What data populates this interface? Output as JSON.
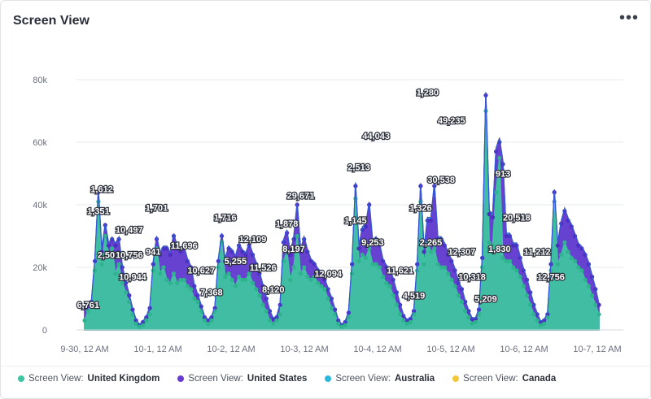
{
  "header": {
    "title": "Screen View",
    "menu_icon": "more-horizontal-icon"
  },
  "colors": {
    "United Kingdom": "#3ec4a0",
    "United States": "#6a3bd0",
    "Australia": "#2bb8da",
    "Canada": "#f2c83a"
  },
  "legend": [
    {
      "prefix": "Screen View:",
      "name": "United Kingdom",
      "color": "#3ec4a0"
    },
    {
      "prefix": "Screen View:",
      "name": "United States",
      "color": "#6a3bd0"
    },
    {
      "prefix": "Screen View:",
      "name": "Australia",
      "color": "#2bb8da"
    },
    {
      "prefix": "Screen View:",
      "name": "Canada",
      "color": "#f2c83a"
    }
  ],
  "chart_data": {
    "type": "area",
    "stacked": true,
    "title": "Screen View",
    "x_tick_labels": [
      "9-30, 12 AM",
      "10-1, 12 AM",
      "10-2, 12 AM",
      "10-3, 12 AM",
      "10-4, 12 AM",
      "10-5, 12 AM",
      "10-6, 12 AM",
      "10-7, 12 AM"
    ],
    "y_tick_labels": [
      "0",
      "20k",
      "40k",
      "60k",
      "80k"
    ],
    "ylim": [
      0,
      80000
    ],
    "x_unit": "hours since 9-30, 12 AM",
    "x": [
      0,
      1,
      2,
      3,
      4,
      5,
      6,
      7,
      8,
      9,
      10,
      11,
      12,
      13,
      14,
      15,
      16,
      17,
      18,
      19,
      20,
      21,
      22,
      23,
      24,
      25,
      26,
      27,
      28,
      29,
      30,
      31,
      32,
      33,
      34,
      35,
      36,
      37,
      38,
      39,
      40,
      41,
      42,
      43,
      44,
      45,
      46,
      47,
      48,
      49,
      50,
      51,
      52,
      53,
      54,
      55,
      56,
      57,
      58,
      59,
      60,
      61,
      62,
      63,
      64,
      65,
      66,
      67,
      68,
      69,
      70,
      71,
      72,
      73,
      74,
      75,
      76,
      77,
      78,
      79,
      80,
      81,
      82,
      83,
      84,
      85,
      86,
      87,
      88,
      89,
      90,
      91,
      92,
      93,
      94,
      95,
      96,
      97,
      98,
      99,
      100,
      101,
      102,
      103,
      104,
      105,
      106,
      107,
      108,
      109,
      110,
      111,
      112,
      113,
      114,
      115,
      116,
      117,
      118,
      119,
      120,
      121,
      122,
      123,
      124,
      125,
      126,
      127,
      128,
      129,
      130,
      131,
      132,
      133,
      134,
      135,
      136,
      137,
      138,
      139,
      140,
      141,
      142,
      143,
      144,
      145,
      146,
      147,
      148,
      149,
      150,
      151,
      152,
      153,
      154,
      155,
      156,
      157,
      158,
      159,
      160,
      161,
      162,
      163,
      164,
      165,
      166,
      167,
      168
    ],
    "series": [
      {
        "name": "United Kingdom",
        "values": [
          3000,
          6000,
          8000,
          19000,
          41000,
          21000,
          30000,
          24000,
          26000,
          18000,
          21000,
          15000,
          12000,
          9000,
          5000,
          2000,
          1000,
          1500,
          3000,
          5000,
          19000,
          26000,
          18000,
          20000,
          16000,
          15000,
          18000,
          15000,
          16000,
          16000,
          14000,
          13000,
          10000,
          9000,
          6000,
          3000,
          2000,
          3000,
          6000,
          20000,
          28000,
          17000,
          18000,
          16000,
          14000,
          17000,
          16000,
          16000,
          18000,
          15000,
          13000,
          11000,
          8000,
          6000,
          3000,
          2000,
          3000,
          5000,
          22000,
          25000,
          16000,
          20000,
          30000,
          18000,
          20000,
          17000,
          16000,
          17000,
          15000,
          14000,
          13000,
          10000,
          7000,
          5000,
          2000,
          1000,
          1500,
          4000,
          18000,
          42000,
          22000,
          24000,
          23000,
          26000,
          21000,
          21000,
          20000,
          17000,
          15000,
          14000,
          11000,
          8000,
          5000,
          3000,
          2000,
          2500,
          5000,
          19000,
          41000,
          21000,
          28000,
          25000,
          26000,
          21000,
          20000,
          20000,
          18000,
          16000,
          14000,
          11000,
          9000,
          6000,
          4000,
          2000,
          2500,
          5000,
          20000,
          70000,
          28000,
          27000,
          44000,
          55000,
          23000,
          22000,
          22000,
          20000,
          19000,
          17000,
          14000,
          11000,
          8000,
          5000,
          3000,
          1500,
          2000,
          4000,
          19000,
          41000,
          21000,
          24000,
          28000,
          25000,
          23000,
          22000,
          20000,
          19000,
          16000,
          14000,
          11000,
          8000,
          5000,
          2000,
          1000,
          1000,
          0,
          0,
          0,
          0,
          0,
          0,
          0,
          0,
          0,
          0,
          0,
          0,
          0,
          0,
          0
        ]
      },
      {
        "name": "United States",
        "values": [
          4000,
          2000,
          1000,
          3000,
          3000,
          4000,
          3500,
          3000,
          3000,
          9000,
          8000,
          5000,
          3000,
          2000,
          1500,
          1000,
          500,
          1000,
          1000,
          2000,
          2000,
          3000,
          6000,
          6000,
          10000,
          9000,
          12000,
          11000,
          9000,
          10000,
          8000,
          7000,
          4000,
          2000,
          1500,
          1000,
          1000,
          1000,
          1000,
          2000,
          2000,
          5000,
          8000,
          9000,
          9000,
          10000,
          9000,
          8000,
          9000,
          9000,
          8000,
          7000,
          6000,
          4000,
          3000,
          1500,
          1000,
          3000,
          6000,
          6000,
          8000,
          9000,
          10000,
          7000,
          9000,
          8000,
          6000,
          4000,
          4000,
          4000,
          3000,
          3000,
          3000,
          1500,
          1000,
          500,
          1000,
          1500,
          3000,
          4000,
          4000,
          8000,
          10000,
          14000,
          7000,
          8000,
          7000,
          5000,
          5000,
          5000,
          5000,
          4000,
          3000,
          1500,
          1000,
          1000,
          1000,
          2000,
          5000,
          4000,
          7000,
          10000,
          20000,
          8000,
          9000,
          7000,
          6000,
          6000,
          5000,
          4000,
          4000,
          3000,
          2000,
          1500,
          1000,
          1500,
          3000,
          5000,
          9000,
          9000,
          13000,
          5000,
          30000,
          8000,
          8000,
          7000,
          8000,
          6000,
          5000,
          5000,
          4000,
          3000,
          2000,
          1000,
          1000,
          1000,
          2000,
          3000,
          6000,
          10000,
          10000,
          10000,
          10000,
          8000,
          7000,
          7000,
          8000,
          7000,
          6000,
          5000,
          3000,
          1500,
          1000,
          1000,
          0,
          0,
          0,
          0,
          0,
          0,
          0,
          0,
          0,
          0,
          0,
          0,
          0,
          0,
          0
        ]
      },
      {
        "name": "Australia",
        "values": [
          300,
          300,
          300,
          500,
          600,
          500,
          500,
          500,
          500,
          500,
          500,
          400,
          400,
          300,
          300,
          200,
          200,
          200,
          200,
          300,
          600,
          700,
          600,
          600,
          600,
          600,
          600,
          600,
          500,
          500,
          500,
          400,
          400,
          300,
          300,
          200,
          200,
          200,
          300,
          500,
          600,
          600,
          600,
          500,
          500,
          500,
          500,
          500,
          500,
          500,
          500,
          400,
          400,
          300,
          200,
          200,
          200,
          300,
          600,
          700,
          600,
          700,
          600,
          600,
          600,
          500,
          500,
          500,
          500,
          400,
          400,
          300,
          300,
          200,
          200,
          200,
          200,
          300,
          500,
          800,
          700,
          700,
          700,
          700,
          600,
          600,
          600,
          500,
          500,
          500,
          400,
          400,
          300,
          300,
          200,
          200,
          200,
          300,
          600,
          700,
          700,
          700,
          700,
          600,
          600,
          600,
          500,
          500,
          500,
          400,
          300,
          300,
          200,
          200,
          200,
          200,
          300,
          700,
          900,
          800,
          900,
          1000,
          700,
          700,
          700,
          600,
          600,
          500,
          500,
          400,
          300,
          300,
          200,
          200,
          200,
          200,
          300,
          700,
          700,
          700,
          700,
          600,
          600,
          600,
          600,
          500,
          500,
          400,
          400,
          300,
          300,
          200,
          200,
          200,
          0,
          0,
          0,
          0,
          0,
          0,
          0,
          0,
          0,
          0,
          0,
          0,
          0,
          0,
          0
        ]
      },
      {
        "name": "Canada",
        "values": [
          100,
          100,
          100,
          200,
          300,
          200,
          200,
          200,
          200,
          200,
          200,
          100,
          100,
          100,
          100,
          100,
          100,
          100,
          100,
          100,
          300,
          300,
          200,
          200,
          200,
          200,
          200,
          200,
          200,
          200,
          200,
          100,
          100,
          100,
          100,
          100,
          100,
          100,
          100,
          200,
          300,
          200,
          200,
          200,
          200,
          200,
          200,
          200,
          200,
          200,
          200,
          100,
          100,
          100,
          100,
          100,
          100,
          100,
          200,
          300,
          200,
          200,
          200,
          200,
          200,
          200,
          200,
          200,
          200,
          100,
          100,
          100,
          100,
          100,
          100,
          100,
          100,
          100,
          200,
          300,
          200,
          300,
          200,
          200,
          200,
          200,
          200,
          200,
          200,
          100,
          100,
          100,
          100,
          100,
          100,
          100,
          100,
          100,
          300,
          200,
          300,
          200,
          300,
          200,
          200,
          200,
          200,
          200,
          200,
          100,
          100,
          100,
          100,
          100,
          100,
          100,
          100,
          300,
          300,
          300,
          300,
          400,
          300,
          200,
          200,
          200,
          200,
          200,
          200,
          100,
          100,
          100,
          100,
          100,
          100,
          100,
          100,
          200,
          300,
          200,
          200,
          200,
          200,
          200,
          200,
          200,
          200,
          200,
          100,
          100,
          100,
          100,
          100,
          100,
          0,
          0,
          0,
          0,
          0,
          0,
          0,
          0,
          0,
          0,
          0,
          0,
          0,
          0,
          0
        ]
      }
    ],
    "data_labels": [
      {
        "text": "6,761",
        "x": 1,
        "y": 7000
      },
      {
        "text": "1,351",
        "x": 4,
        "y": 37000
      },
      {
        "text": "1,612",
        "x": 5,
        "y": 44000
      },
      {
        "text": "2,501",
        "x": 7,
        "y": 23000
      },
      {
        "text": "10,497",
        "x": 13,
        "y": 31000
      },
      {
        "text": "10,756",
        "x": 13,
        "y": 23000
      },
      {
        "text": "10,944",
        "x": 14,
        "y": 16000
      },
      {
        "text": "941",
        "x": 20,
        "y": 24000
      },
      {
        "text": "1,701",
        "x": 21,
        "y": 38000
      },
      {
        "text": "11,696",
        "x": 29,
        "y": 26000
      },
      {
        "text": "10,627",
        "x": 34,
        "y": 18000
      },
      {
        "text": "7,368",
        "x": 37,
        "y": 11000
      },
      {
        "text": "1,716",
        "x": 41,
        "y": 35000
      },
      {
        "text": "5,255",
        "x": 44,
        "y": 21000
      },
      {
        "text": "12,109",
        "x": 49,
        "y": 28000
      },
      {
        "text": "11,526",
        "x": 52,
        "y": 19000
      },
      {
        "text": "8,120",
        "x": 55,
        "y": 12000
      },
      {
        "text": "1,878",
        "x": 59,
        "y": 33000
      },
      {
        "text": "8,197",
        "x": 61,
        "y": 25000
      },
      {
        "text": "29,671",
        "x": 63,
        "y": 42000
      },
      {
        "text": "12,094",
        "x": 71,
        "y": 17000
      },
      {
        "text": "1,145",
        "x": 79,
        "y": 34000
      },
      {
        "text": "2,513",
        "x": 80,
        "y": 51000
      },
      {
        "text": "9,253",
        "x": 84,
        "y": 27000
      },
      {
        "text": "44,043",
        "x": 85,
        "y": 61000
      },
      {
        "text": "11,621",
        "x": 92,
        "y": 18000
      },
      {
        "text": "4,519",
        "x": 96,
        "y": 10000
      },
      {
        "text": "1,326",
        "x": 98,
        "y": 38000
      },
      {
        "text": "1,280",
        "x": 100,
        "y": 75000
      },
      {
        "text": "2,265",
        "x": 101,
        "y": 27000
      },
      {
        "text": "30,538",
        "x": 104,
        "y": 47000
      },
      {
        "text": "49,235",
        "x": 107,
        "y": 66000
      },
      {
        "text": "12,307",
        "x": 110,
        "y": 24000
      },
      {
        "text": "10,318",
        "x": 113,
        "y": 16000
      },
      {
        "text": "5,209",
        "x": 117,
        "y": 9000
      },
      {
        "text": "1,830",
        "x": 121,
        "y": 25000
      },
      {
        "text": "913",
        "x": 122,
        "y": 49000
      },
      {
        "text": "20,518",
        "x": 126,
        "y": 35000
      },
      {
        "text": "11,212",
        "x": 132,
        "y": 24000
      },
      {
        "text": "12,756",
        "x": 136,
        "y": 16000
      }
    ],
    "legend_position": "bottom",
    "grid": true
  }
}
